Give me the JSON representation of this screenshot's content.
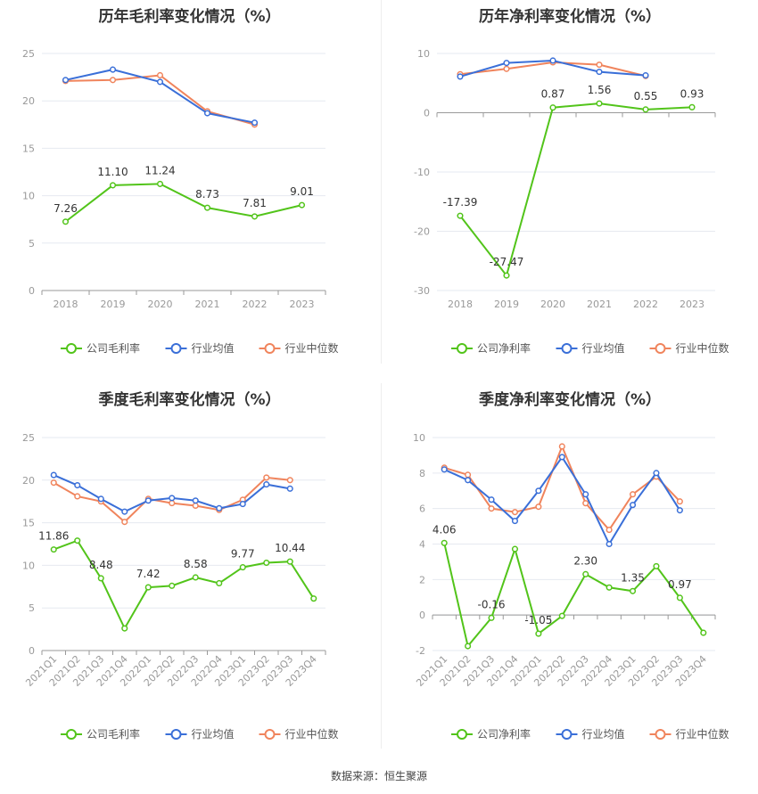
{
  "colors": {
    "company": "#52c41a",
    "industry_avg": "#3a6fd8",
    "industry_median": "#f0845c",
    "grid": "#e6e9f0",
    "axis": "#999999",
    "tick": "#999999",
    "label": "#333333"
  },
  "legend": {
    "gross_company": "公司毛利率",
    "net_company": "公司净利率",
    "industry_avg": "行业均值",
    "industry_median": "行业中位数"
  },
  "source": "数据来源：恒生聚源",
  "chart_data": [
    {
      "type": "line",
      "title": "历年毛利率变化情况（%）",
      "categories": [
        "2018",
        "2019",
        "2020",
        "2021",
        "2022",
        "2023"
      ],
      "ylim": [
        0,
        25
      ],
      "yticks": [
        0,
        5,
        10,
        15,
        20,
        25
      ],
      "series": [
        {
          "key": "company",
          "name": "公司毛利率",
          "values": [
            7.26,
            11.1,
            11.24,
            8.73,
            7.81,
            9.01
          ],
          "labels": [
            "7.26",
            "11.10",
            "11.24",
            "8.73",
            "7.81",
            "9.01"
          ]
        },
        {
          "key": "industry_avg",
          "name": "行业均值",
          "values": [
            22.2,
            23.3,
            22.0,
            18.7,
            17.7,
            null
          ]
        },
        {
          "key": "industry_median",
          "name": "行业中位数",
          "values": [
            22.1,
            22.2,
            22.7,
            18.9,
            17.5,
            null
          ]
        }
      ]
    },
    {
      "type": "line",
      "title": "历年净利率变化情况（%）",
      "categories": [
        "2018",
        "2019",
        "2020",
        "2021",
        "2022",
        "2023"
      ],
      "ylim": [
        -30,
        10
      ],
      "yticks": [
        -30,
        -20,
        -10,
        0,
        10
      ],
      "series": [
        {
          "key": "company",
          "name": "公司净利率",
          "values": [
            -17.39,
            -27.47,
            0.87,
            1.56,
            0.55,
            0.93
          ],
          "labels": [
            "-17.39",
            "-27.47",
            "0.87",
            "1.56",
            "0.55",
            "0.93"
          ]
        },
        {
          "key": "industry_avg",
          "name": "行业均值",
          "values": [
            6.1,
            8.4,
            8.8,
            6.9,
            6.3,
            null
          ]
        },
        {
          "key": "industry_median",
          "name": "行业中位数",
          "values": [
            6.5,
            7.4,
            8.5,
            8.1,
            6.2,
            null
          ]
        }
      ]
    },
    {
      "type": "line",
      "title": "季度毛利率变化情况（%）",
      "categories": [
        "2021Q1",
        "2021Q2",
        "2021Q3",
        "2021Q4",
        "2022Q1",
        "2022Q2",
        "2022Q3",
        "2022Q4",
        "2023Q1",
        "2023Q2",
        "2023Q3",
        "2023Q4"
      ],
      "ylim": [
        0,
        25
      ],
      "yticks": [
        0,
        5,
        10,
        15,
        20,
        25
      ],
      "series": [
        {
          "key": "company",
          "name": "公司毛利率",
          "values": [
            11.86,
            12.9,
            8.48,
            2.6,
            7.42,
            7.6,
            8.58,
            7.9,
            9.77,
            10.3,
            10.44,
            6.1
          ],
          "labels": [
            "11.86",
            "",
            "8.48",
            "",
            "7.42",
            "",
            "8.58",
            "",
            "9.77",
            "",
            "10.44",
            ""
          ]
        },
        {
          "key": "industry_avg",
          "name": "行业均值",
          "values": [
            20.6,
            19.4,
            17.8,
            16.3,
            17.6,
            17.9,
            17.6,
            16.7,
            17.2,
            19.5,
            19.0,
            null
          ]
        },
        {
          "key": "industry_median",
          "name": "行业中位数",
          "values": [
            19.7,
            18.1,
            17.5,
            15.1,
            17.8,
            17.3,
            17.0,
            16.5,
            17.7,
            20.3,
            20.0,
            null
          ]
        }
      ]
    },
    {
      "type": "line",
      "title": "季度净利率变化情况（%）",
      "categories": [
        "2021Q1",
        "2021Q2",
        "2021Q3",
        "2021Q4",
        "2022Q1",
        "2022Q2",
        "2022Q3",
        "2022Q4",
        "2023Q1",
        "2023Q2",
        "2023Q3",
        "2023Q4"
      ],
      "ylim": [
        -2,
        10
      ],
      "yticks": [
        -2,
        0,
        2,
        4,
        6,
        8,
        10
      ],
      "series": [
        {
          "key": "company",
          "name": "公司净利率",
          "values": [
            4.06,
            -1.75,
            -0.16,
            3.72,
            -1.05,
            -0.05,
            2.3,
            1.55,
            1.35,
            2.75,
            0.97,
            -1.0
          ],
          "labels": [
            "4.06",
            "",
            "-0.16",
            "",
            "-1.05",
            "",
            "2.30",
            "",
            "1.35",
            "",
            "0.97",
            ""
          ]
        },
        {
          "key": "industry_avg",
          "name": "行业均值",
          "values": [
            8.2,
            7.6,
            6.5,
            5.3,
            7.0,
            8.9,
            6.8,
            4.0,
            6.2,
            8.0,
            5.9,
            null
          ]
        },
        {
          "key": "industry_median",
          "name": "行业中位数",
          "values": [
            8.3,
            7.9,
            6.0,
            5.8,
            6.1,
            9.5,
            6.3,
            4.8,
            6.8,
            7.8,
            6.4,
            null
          ]
        }
      ]
    }
  ]
}
